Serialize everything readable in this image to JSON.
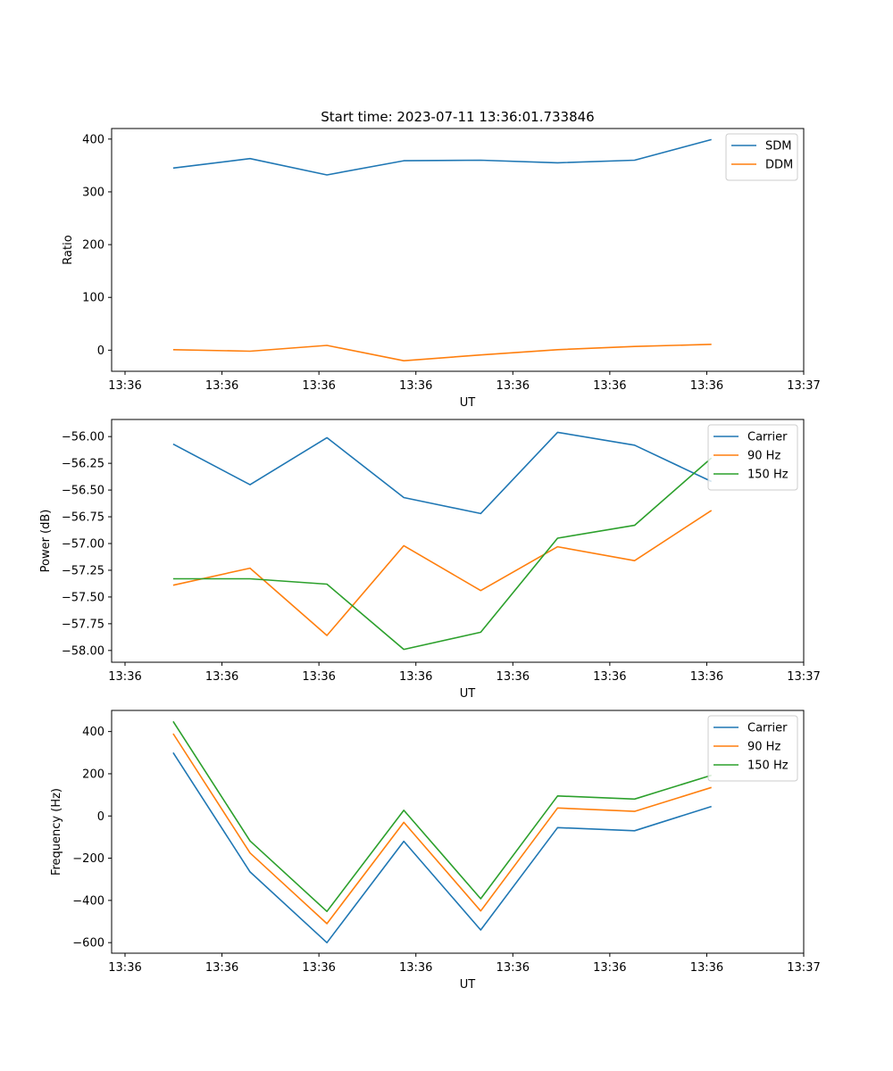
{
  "colors": {
    "blue": "#1f77b4",
    "orange": "#ff7f0e",
    "green": "#2ca02c"
  },
  "chart_data": [
    {
      "type": "line",
      "title": "Start time: 2023-07-11 13:36:01.733846",
      "xlabel": "UT",
      "ylabel": "Ratio",
      "x_tick_labels": [
        "13:36",
        "13:36",
        "13:36",
        "13:36",
        "13:36",
        "13:36",
        "13:36"
      ],
      "x_tick_labels_end": "13:37",
      "x": [
        1,
        2,
        3,
        4,
        5,
        6,
        7,
        8
      ],
      "xlim": [
        0.2,
        9.2
      ],
      "yticks": [
        0,
        100,
        200,
        300,
        400
      ],
      "ylim": [
        -40,
        420
      ],
      "legend": "top-right",
      "series": [
        {
          "name": "SDM",
          "color": "#1f77b4",
          "values": [
            345,
            363,
            332,
            359,
            360,
            355,
            360,
            399
          ]
        },
        {
          "name": "DDM",
          "color": "#ff7f0e",
          "values": [
            1,
            -2,
            9,
            -20,
            -9,
            1,
            7,
            11
          ]
        }
      ]
    },
    {
      "type": "line",
      "title": "",
      "xlabel": "UT",
      "ylabel": "Power (dB)",
      "x_tick_labels": [
        "13:36",
        "13:36",
        "13:36",
        "13:36",
        "13:36",
        "13:36",
        "13:36"
      ],
      "x_tick_labels_end": "13:37",
      "x": [
        1,
        2,
        3,
        4,
        5,
        6,
        7,
        8
      ],
      "xlim": [
        0.2,
        9.2
      ],
      "yticks": [
        "-56.00",
        "-56.25",
        "-56.50",
        "-56.75",
        "-57.00",
        "-57.25",
        "-57.50",
        "-57.75",
        "-58.00"
      ],
      "ylim": [
        -58.11,
        -55.84
      ],
      "legend": "top-right",
      "series": [
        {
          "name": "Carrier",
          "color": "#1f77b4",
          "values": [
            -56.07,
            -56.45,
            -56.01,
            -56.57,
            -56.72,
            -55.96,
            -56.08,
            -56.42
          ]
        },
        {
          "name": "90 Hz",
          "color": "#ff7f0e",
          "values": [
            -57.39,
            -57.23,
            -57.86,
            -57.02,
            -57.44,
            -57.03,
            -57.16,
            -56.69
          ]
        },
        {
          "name": "150 Hz",
          "color": "#2ca02c",
          "values": [
            -57.33,
            -57.33,
            -57.38,
            -57.99,
            -57.83,
            -56.95,
            -56.83,
            -56.2
          ]
        }
      ]
    },
    {
      "type": "line",
      "title": "",
      "xlabel": "UT",
      "ylabel": "Frequency (Hz)",
      "x_tick_labels": [
        "13:36",
        "13:36",
        "13:36",
        "13:36",
        "13:36",
        "13:36",
        "13:36"
      ],
      "x_tick_labels_end": "13:37",
      "x": [
        1,
        2,
        3,
        4,
        5,
        6,
        7,
        8
      ],
      "xlim": [
        0.2,
        9.2
      ],
      "yticks": [
        -600,
        -400,
        -200,
        0,
        200,
        400
      ],
      "ylim": [
        -650,
        500
      ],
      "legend": "top-right",
      "series": [
        {
          "name": "Carrier",
          "color": "#1f77b4",
          "values": [
            300,
            -265,
            -600,
            -120,
            -540,
            -55,
            -70,
            45
          ]
        },
        {
          "name": "90 Hz",
          "color": "#ff7f0e",
          "values": [
            390,
            -175,
            -510,
            -30,
            -450,
            38,
            22,
            135
          ]
        },
        {
          "name": "150 Hz",
          "color": "#2ca02c",
          "values": [
            448,
            -118,
            -452,
            27,
            -392,
            95,
            80,
            193
          ]
        }
      ]
    }
  ]
}
